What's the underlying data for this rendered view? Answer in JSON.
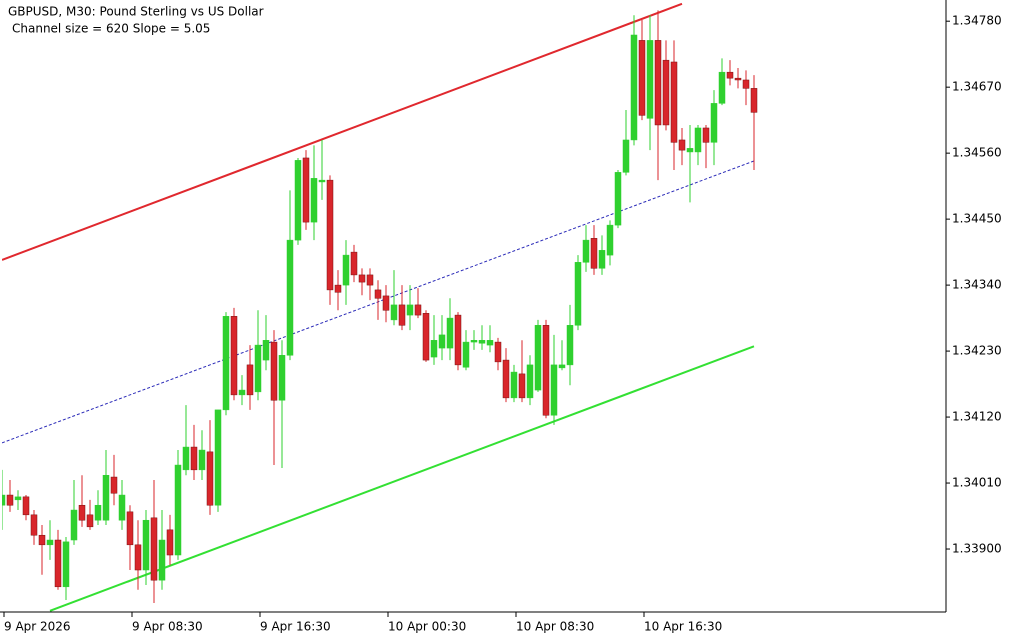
{
  "chart_data": {
    "type": "candlestick",
    "title": "GBPUSD, M30:  Pound Sterling vs US Dollar",
    "subtitle": "Channel size = 620 Slope = 5.05",
    "categories": [
      "9 Apr 2026",
      null,
      null,
      null,
      null,
      null,
      null,
      null,
      null,
      null,
      null,
      null,
      null,
      null,
      null,
      null,
      "9 Apr 08:30",
      null,
      null,
      null,
      null,
      null,
      null,
      null,
      null,
      null,
      null,
      null,
      null,
      null,
      null,
      null,
      "9 Apr 16:30",
      null,
      null,
      null,
      null,
      null,
      null,
      null,
      null,
      null,
      null,
      null,
      null,
      null,
      null,
      null,
      "10 Apr 00:30",
      null,
      null,
      null,
      null,
      null,
      null,
      null,
      null,
      null,
      null,
      null,
      null,
      null,
      null,
      null,
      "10 Apr 08:30",
      null,
      null,
      null,
      null,
      null,
      null,
      null,
      null,
      null,
      null,
      null,
      null,
      null,
      null,
      null,
      "10 Apr 16:30",
      null,
      null,
      null,
      null,
      null,
      null,
      null,
      null,
      null,
      null,
      null,
      null,
      null,
      null
    ],
    "xlim": [
      0,
      118
    ],
    "open": [
      1.33973,
      1.3399,
      1.33982,
      1.33987,
      1.33957,
      1.33923,
      1.33907,
      1.33915,
      1.33837,
      1.33915,
      1.33973,
      1.33957,
      1.33948,
      1.33948,
      1.3402,
      1.33948,
      1.33962,
      1.33907,
      1.33865,
      1.33952,
      1.33848,
      1.33932,
      1.3389,
      1.34032,
      1.3407,
      1.34032,
      1.34062,
      1.33973,
      1.34132,
      1.34288,
      1.34157,
      1.34207,
      1.34162,
      1.34215,
      1.34245,
      1.34148,
      1.34223,
      1.34415,
      1.34552,
      1.34445,
      1.34512,
      1.34515,
      1.3434,
      1.3434,
      1.34395,
      1.34357,
      1.34357,
      1.34332,
      1.34322,
      1.34282,
      1.34307,
      1.3429,
      1.34307,
      1.34293,
      1.3422,
      1.34235,
      1.34235,
      1.3429,
      1.34203,
      1.34245,
      1.34243,
      1.3424,
      1.34245,
      1.34215,
      1.34152,
      1.34192,
      1.34152,
      1.34165,
      1.34273,
      1.34123,
      1.34202,
      1.34207,
      1.34273,
      1.34378,
      1.34418,
      1.34368,
      1.3439,
      1.3444,
      1.34528,
      1.34582,
      1.34748,
      1.34618,
      1.34748,
      1.34715,
      1.34712,
      1.34582,
      1.34562,
      1.34562,
      1.34602,
      1.34578,
      1.34643,
      1.34695,
      1.34685,
      1.34682,
      1.34668
    ],
    "high": [
      1.34032,
      1.34015,
      1.33998,
      1.3399,
      1.33965,
      1.3394,
      1.33948,
      1.33932,
      1.3392,
      1.34015,
      1.34023,
      1.33982,
      1.33998,
      1.34065,
      1.34057,
      1.34015,
      1.33973,
      1.33948,
      1.33965,
      1.34015,
      1.33965,
      1.33957,
      1.34065,
      1.3414,
      1.34107,
      1.34098,
      1.34115,
      1.34132,
      1.34295,
      1.34302,
      1.3419,
      1.3424,
      1.34298,
      1.3429,
      1.34265,
      1.34248,
      1.34498,
      1.34552,
      1.34565,
      1.34573,
      1.34582,
      1.34523,
      1.34365,
      1.34415,
      1.34407,
      1.34368,
      1.34368,
      1.34348,
      1.3434,
      1.34365,
      1.3434,
      1.3434,
      1.34335,
      1.34298,
      1.3429,
      1.3429,
      1.34318,
      1.34295,
      1.34265,
      1.34265,
      1.34273,
      1.34273,
      1.34252,
      1.34235,
      1.34207,
      1.34248,
      1.34223,
      1.34282,
      1.34282,
      1.34257,
      1.34248,
      1.34307,
      1.3439,
      1.3444,
      1.3444,
      1.34423,
      1.34448,
      1.34532,
      1.34632,
      1.3479,
      1.34782,
      1.3479,
      1.34798,
      1.34748,
      1.34748,
      1.34602,
      1.34607,
      1.34607,
      1.34607,
      1.34665,
      1.34718,
      1.34715,
      1.34702,
      1.34698,
      1.3469
    ],
    "low": [
      1.33932,
      1.33962,
      1.33965,
      1.33948,
      1.33907,
      1.33857,
      1.33882,
      1.33832,
      1.33815,
      1.33907,
      1.33937,
      1.33932,
      1.3394,
      1.3394,
      1.33973,
      1.33932,
      1.33865,
      1.33832,
      1.3384,
      1.3381,
      1.33832,
      1.33873,
      1.33882,
      1.34023,
      1.34015,
      1.34015,
      1.33957,
      1.33962,
      1.34123,
      1.34148,
      1.3414,
      1.34132,
      1.34148,
      1.34198,
      1.3404,
      1.34035,
      1.34215,
      1.34407,
      1.34432,
      1.34415,
      1.34482,
      1.34307,
      1.34298,
      1.34307,
      1.34345,
      1.34323,
      1.34315,
      1.34282,
      1.34278,
      1.34273,
      1.34265,
      1.34265,
      1.34285,
      1.34212,
      1.34207,
      1.34215,
      1.34215,
      1.34198,
      1.34198,
      1.34232,
      1.34232,
      1.34228,
      1.34198,
      1.34145,
      1.34145,
      1.34145,
      1.3414,
      1.34162,
      1.34118,
      1.34107,
      1.34198,
      1.34173,
      1.34265,
      1.34362,
      1.34357,
      1.34357,
      1.34373,
      1.34435,
      1.34523,
      1.34573,
      1.34615,
      1.34565,
      1.34515,
      1.34598,
      1.34532,
      1.3454,
      1.34478,
      1.3454,
      1.34535,
      1.3454,
      1.3464,
      1.34673,
      1.34668,
      1.3464,
      1.34532
    ],
    "close": [
      1.3399,
      1.33973,
      1.33987,
      1.33957,
      1.33923,
      1.33907,
      1.33915,
      1.33837,
      1.33912,
      1.33965,
      1.33948,
      1.33937,
      1.33973,
      1.34023,
      1.33993,
      1.3399,
      1.33907,
      1.33865,
      1.33948,
      1.33848,
      1.33915,
      1.3389,
      1.3404,
      1.3407,
      1.34032,
      1.34065,
      1.33973,
      1.34132,
      1.34288,
      1.34157,
      1.34165,
      1.34157,
      1.3424,
      1.34248,
      1.34148,
      1.34223,
      1.34415,
      1.34548,
      1.34445,
      1.34518,
      1.34515,
      1.34332,
      1.34328,
      1.3439,
      1.34357,
      1.34345,
      1.3434,
      1.34318,
      1.34298,
      1.34307,
      1.34273,
      1.34307,
      1.3429,
      1.34215,
      1.34248,
      1.34257,
      1.34285,
      1.34207,
      1.34245,
      1.34248,
      1.34248,
      1.34248,
      1.34212,
      1.34152,
      1.34195,
      1.34152,
      1.34207,
      1.34273,
      1.34123,
      1.34207,
      1.34207,
      1.34273,
      1.34378,
      1.34415,
      1.34368,
      1.34398,
      1.3444,
      1.34528,
      1.34582,
      1.34757,
      1.34623,
      1.34748,
      1.34607,
      1.34607,
      1.34578,
      1.34565,
      1.34568,
      1.34602,
      1.34578,
      1.34643,
      1.34695,
      1.34685,
      1.34682,
      1.34668,
      1.34628
    ],
    "up_color": "#2fd02f",
    "down_color": "#d8262b",
    "channel": [
      {
        "x": [
          0,
          85
        ],
        "values": [
          1.34382,
          1.34809
        ],
        "color": "#e0282e",
        "dashed": false
      },
      {
        "x": [
          0,
          94
        ],
        "values": [
          1.34077,
          1.34547
        ],
        "color": "#2a2ab8",
        "dashed": true
      },
      {
        "x": [
          6,
          94
        ],
        "values": [
          1.33797,
          1.34238
        ],
        "color": "#33e033",
        "dashed": false
      }
    ],
    "ylim": [
      1.33795,
      1.34812
    ],
    "yticks": [
      {
        "value": 1.3478,
        "label": "1.34780"
      },
      {
        "value": 1.3467,
        "label": "1.34670"
      },
      {
        "value": 1.3456,
        "label": "1.34560"
      },
      {
        "value": 1.3445,
        "label": "1.34450"
      },
      {
        "value": 1.3434,
        "label": "1.34340"
      },
      {
        "value": 1.3423,
        "label": "1.34230"
      },
      {
        "value": 1.3412,
        "label": "1.34120"
      },
      {
        "value": 1.3401,
        "label": "1.34010"
      },
      {
        "value": 1.339,
        "label": "1.33900"
      }
    ],
    "grid": false
  }
}
